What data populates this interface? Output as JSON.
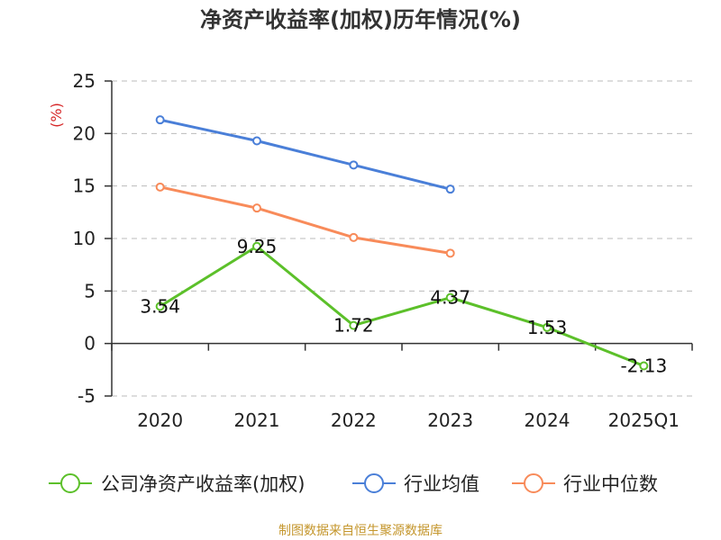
{
  "chart_data": {
    "type": "line",
    "title": "净资产收益率(加权)历年情况(%)",
    "ylabel": "(%)",
    "ylim": [
      -5,
      25
    ],
    "yticks": [
      25,
      20,
      15,
      10,
      5,
      0,
      -5
    ],
    "categories": [
      "2020",
      "2021",
      "2022",
      "2023",
      "2024",
      "2025Q1"
    ],
    "series": [
      {
        "name": "公司净资产收益率(加权)",
        "color": "#5cc02a",
        "values": [
          3.54,
          9.25,
          1.72,
          4.37,
          1.53,
          -2.13
        ],
        "labels": [
          "3.54",
          "9.25",
          "1.72",
          "4.37",
          "1.53",
          "-2.13"
        ]
      },
      {
        "name": "行业均值",
        "color": "#4a7fd8",
        "values": [
          21.3,
          19.3,
          17.0,
          14.7,
          null,
          null
        ]
      },
      {
        "name": "行业中位数",
        "color": "#f88b5a",
        "values": [
          14.9,
          12.9,
          10.1,
          8.6,
          null,
          null
        ]
      }
    ],
    "source": "制图数据来自恒生聚源数据库"
  }
}
